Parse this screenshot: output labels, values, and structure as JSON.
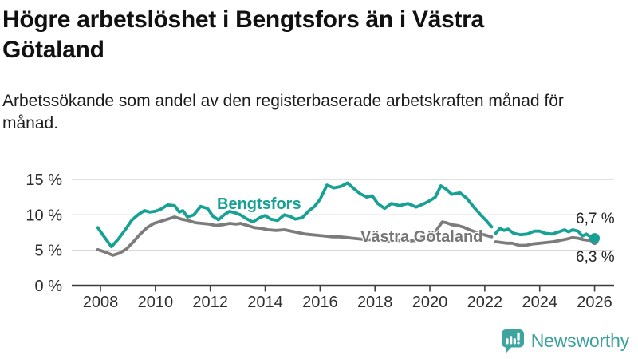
{
  "header": {
    "title": "Högre arbetslöshet i Bengtsfors än i Västra Götaland",
    "subtitle": "Arbetssökande som andel av den registerbaserade arbetskraften månad för månad."
  },
  "chart_data": {
    "type": "line",
    "title": "Högre arbetslöshet i Bengtsfors än i Västra Götaland",
    "xlabel": "",
    "ylabel": "",
    "unit": "%",
    "grid": "horizontal",
    "legend_position": "inline-labels",
    "x_axis": {
      "range": [
        2007.9,
        2026.3
      ],
      "ticks": [
        {
          "label": "2008",
          "value": 2008
        },
        {
          "label": "2010",
          "value": 2010
        },
        {
          "label": "2012",
          "value": 2012
        },
        {
          "label": "2014",
          "value": 2014
        },
        {
          "label": "2016",
          "value": 2016
        },
        {
          "label": "2018",
          "value": 2018
        },
        {
          "label": "2020",
          "value": 2020
        },
        {
          "label": "2022",
          "value": 2022
        },
        {
          "label": "2024",
          "value": 2024
        },
        {
          "label": "2026",
          "value": 2026
        }
      ]
    },
    "y_axis": {
      "range": [
        0,
        15
      ],
      "ticks": [
        {
          "label": "15 %",
          "value": 15
        },
        {
          "label": "10 %",
          "value": 10
        },
        {
          "label": "5 %",
          "value": 5
        },
        {
          "label": "0 %",
          "value": 0
        }
      ]
    },
    "series": [
      {
        "name": "Bengtsfors",
        "color": "#17a094",
        "end_label": "6,7 %",
        "end_value": 6.7,
        "dot_radius": 6.5,
        "segments": [
          [
            [
              2007.9,
              8.2
            ],
            [
              2008.1,
              7.1
            ],
            [
              2008.4,
              5.5
            ],
            [
              2008.65,
              6.6
            ],
            [
              2008.9,
              7.9
            ],
            [
              2009.15,
              9.3
            ],
            [
              2009.4,
              10.1
            ],
            [
              2009.6,
              10.6
            ],
            [
              2009.8,
              10.4
            ],
            [
              2010.0,
              10.5
            ],
            [
              2010.2,
              10.8
            ],
            [
              2010.45,
              11.4
            ],
            [
              2010.7,
              11.3
            ],
            [
              2010.87,
              10.4
            ],
            [
              2011.0,
              10.6
            ],
            [
              2011.17,
              9.7
            ],
            [
              2011.4,
              10.0
            ],
            [
              2011.65,
              11.2
            ],
            [
              2011.9,
              10.9
            ],
            [
              2012.1,
              9.8
            ],
            [
              2012.3,
              9.3
            ],
            [
              2012.5,
              10.0
            ],
            [
              2012.7,
              10.5
            ],
            [
              2012.9,
              10.3
            ],
            [
              2013.1,
              10.0
            ],
            [
              2013.3,
              9.5
            ],
            [
              2013.55,
              9.0
            ],
            [
              2013.8,
              9.6
            ],
            [
              2014.0,
              9.9
            ],
            [
              2014.2,
              9.4
            ],
            [
              2014.45,
              9.2
            ],
            [
              2014.7,
              10.0
            ],
            [
              2014.9,
              9.8
            ],
            [
              2015.1,
              9.4
            ],
            [
              2015.35,
              9.6
            ],
            [
              2015.6,
              10.6
            ],
            [
              2015.8,
              11.2
            ],
            [
              2016.0,
              12.2
            ],
            [
              2016.25,
              14.2
            ],
            [
              2016.5,
              13.8
            ],
            [
              2016.75,
              14.0
            ],
            [
              2017.0,
              14.5
            ],
            [
              2017.2,
              13.8
            ],
            [
              2017.45,
              13.0
            ],
            [
              2017.7,
              12.5
            ],
            [
              2017.9,
              12.7
            ],
            [
              2018.1,
              11.6
            ],
            [
              2018.35,
              10.9
            ],
            [
              2018.6,
              11.6
            ],
            [
              2018.9,
              11.3
            ],
            [
              2019.2,
              11.6
            ],
            [
              2019.5,
              11.1
            ],
            [
              2019.8,
              11.6
            ],
            [
              2020.0,
              12.0
            ],
            [
              2020.2,
              12.5
            ],
            [
              2020.4,
              14.1
            ],
            [
              2020.6,
              13.6
            ],
            [
              2020.8,
              12.9
            ],
            [
              2021.1,
              13.1
            ],
            [
              2021.35,
              12.3
            ],
            [
              2021.6,
              11.1
            ],
            [
              2021.85,
              10.0
            ],
            [
              2022.05,
              9.2
            ],
            [
              2022.25,
              8.3
            ]
          ],
          [
            [
              2022.4,
              7.4
            ],
            [
              2022.55,
              8.1
            ],
            [
              2022.7,
              7.8
            ],
            [
              2022.85,
              8.0
            ],
            [
              2023.05,
              7.4
            ],
            [
              2023.3,
              7.2
            ],
            [
              2023.55,
              7.3
            ],
            [
              2023.8,
              7.7
            ],
            [
              2024.0,
              7.7
            ],
            [
              2024.2,
              7.4
            ],
            [
              2024.45,
              7.3
            ],
            [
              2024.7,
              7.6
            ],
            [
              2024.9,
              7.9
            ],
            [
              2025.05,
              7.6
            ],
            [
              2025.2,
              7.9
            ],
            [
              2025.4,
              7.7
            ],
            [
              2025.55,
              7.0
            ],
            [
              2025.7,
              7.3
            ],
            [
              2025.85,
              6.9
            ],
            [
              2026.0,
              6.7
            ]
          ]
        ]
      },
      {
        "name": "Västra Götaland",
        "color": "#7c7c7c",
        "end_label": "6,3 %",
        "end_value": 6.3,
        "dot_radius": 5,
        "segments": [
          [
            [
              2007.9,
              5.1
            ],
            [
              2008.2,
              4.7
            ],
            [
              2008.45,
              4.3
            ],
            [
              2008.7,
              4.6
            ],
            [
              2008.95,
              5.2
            ],
            [
              2009.2,
              6.2
            ],
            [
              2009.45,
              7.3
            ],
            [
              2009.7,
              8.2
            ],
            [
              2009.95,
              8.8
            ],
            [
              2010.2,
              9.1
            ],
            [
              2010.45,
              9.4
            ],
            [
              2010.7,
              9.7
            ],
            [
              2010.95,
              9.4
            ],
            [
              2011.2,
              9.2
            ],
            [
              2011.45,
              8.9
            ],
            [
              2011.7,
              8.8
            ],
            [
              2011.95,
              8.7
            ],
            [
              2012.2,
              8.5
            ],
            [
              2012.45,
              8.6
            ],
            [
              2012.7,
              8.8
            ],
            [
              2012.95,
              8.7
            ],
            [
              2013.1,
              8.8
            ],
            [
              2013.35,
              8.5
            ],
            [
              2013.6,
              8.2
            ],
            [
              2013.85,
              8.1
            ],
            [
              2014.1,
              7.9
            ],
            [
              2014.4,
              7.8
            ],
            [
              2014.7,
              7.9
            ],
            [
              2014.95,
              7.7
            ],
            [
              2015.2,
              7.5
            ],
            [
              2015.45,
              7.3
            ],
            [
              2015.7,
              7.2
            ],
            [
              2015.95,
              7.1
            ],
            [
              2016.2,
              7.0
            ],
            [
              2016.45,
              6.9
            ],
            [
              2016.7,
              6.9
            ],
            [
              2016.95,
              6.8
            ],
            [
              2017.2,
              6.7
            ],
            [
              2017.45,
              6.6
            ],
            [
              2017.7,
              6.5
            ],
            [
              2017.95,
              6.5
            ],
            [
              2018.3,
              6.3
            ],
            [
              2018.6,
              6.3
            ],
            [
              2018.9,
              6.4
            ],
            [
              2019.2,
              6.3
            ],
            [
              2019.5,
              6.4
            ],
            [
              2019.8,
              6.6
            ],
            [
              2020.0,
              6.9
            ],
            [
              2020.2,
              7.6
            ],
            [
              2020.45,
              9.0
            ],
            [
              2020.6,
              8.9
            ],
            [
              2020.8,
              8.6
            ],
            [
              2021.0,
              8.5
            ],
            [
              2021.2,
              8.3
            ],
            [
              2021.5,
              7.8
            ],
            [
              2021.8,
              7.4
            ],
            [
              2022.05,
              7.1
            ],
            [
              2022.25,
              6.9
            ]
          ],
          [
            [
              2022.4,
              6.2
            ],
            [
              2022.6,
              6.1
            ],
            [
              2022.8,
              6.0
            ],
            [
              2023.0,
              6.0
            ],
            [
              2023.25,
              5.7
            ],
            [
              2023.5,
              5.7
            ],
            [
              2023.75,
              5.9
            ],
            [
              2024.0,
              6.0
            ],
            [
              2024.25,
              6.1
            ],
            [
              2024.5,
              6.2
            ],
            [
              2024.75,
              6.4
            ],
            [
              2025.0,
              6.6
            ],
            [
              2025.2,
              6.8
            ],
            [
              2025.4,
              6.7
            ],
            [
              2025.6,
              6.5
            ],
            [
              2025.8,
              6.4
            ],
            [
              2026.0,
              6.3
            ]
          ]
        ]
      }
    ],
    "colors": {
      "gridline": "#d9d9d9",
      "axis": "#3d3d3d",
      "tick_text": "#2e2e2e"
    }
  },
  "footer": {
    "brand": "Newsworthy",
    "brand_color": "#3aa19c"
  }
}
